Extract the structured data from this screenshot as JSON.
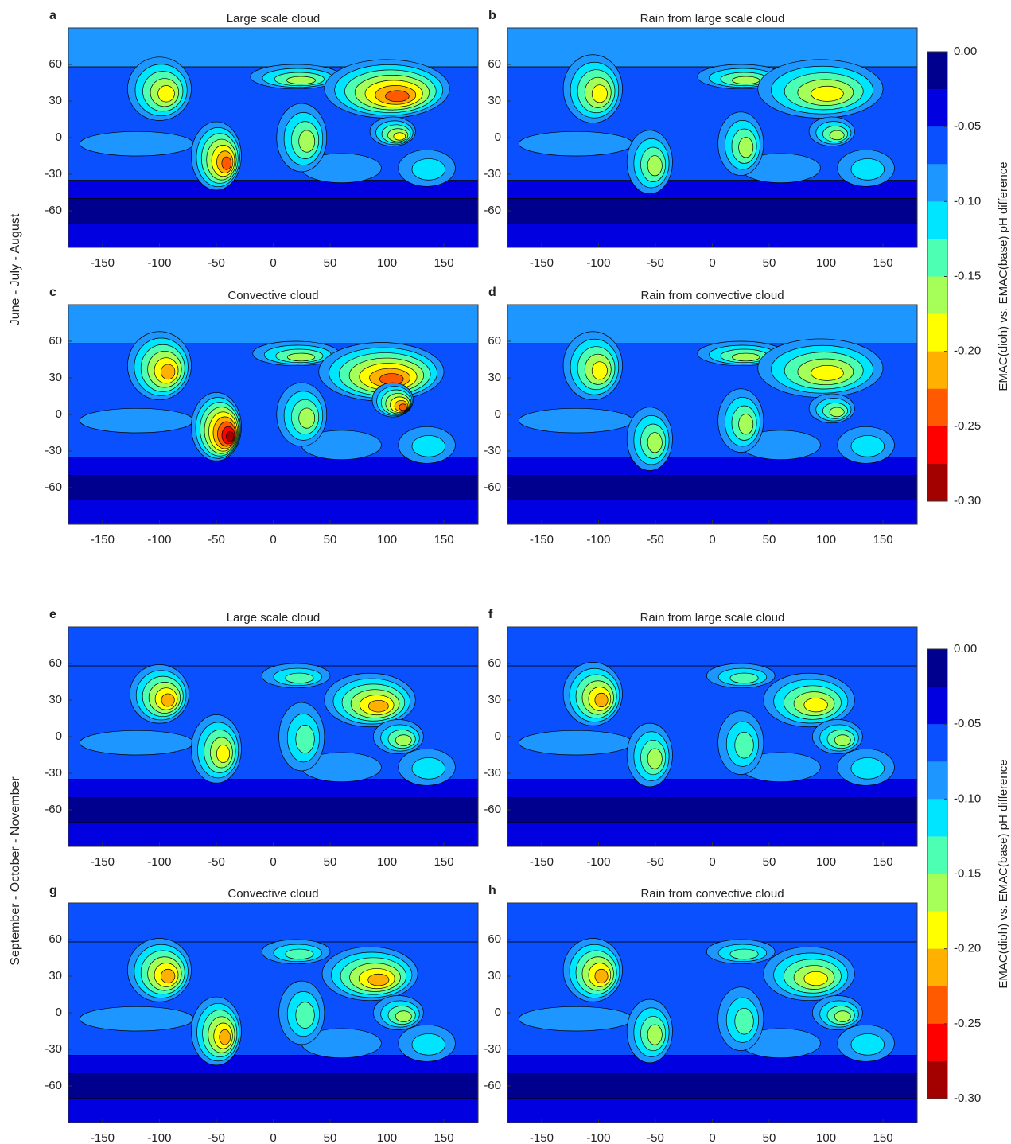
{
  "chart_data": [
    {
      "type": "contour",
      "panel": "a",
      "title": "Large scale cloud",
      "xlim": [
        -180,
        180
      ],
      "ylim": [
        -90,
        90
      ],
      "xticks": [
        -150,
        -100,
        -50,
        0,
        50,
        100,
        150
      ],
      "yticks": [
        -60,
        -30,
        0,
        30,
        60
      ]
    },
    {
      "type": "contour",
      "panel": "b",
      "title": "Rain from large scale cloud",
      "xlim": [
        -180,
        180
      ],
      "ylim": [
        -90,
        90
      ],
      "xticks": [
        -150,
        -100,
        -50,
        0,
        50,
        100,
        150
      ],
      "yticks": [
        -60,
        -30,
        0,
        30,
        60
      ]
    },
    {
      "type": "contour",
      "panel": "c",
      "title": "Convective cloud",
      "xlim": [
        -180,
        180
      ],
      "ylim": [
        -90,
        90
      ],
      "xticks": [
        -150,
        -100,
        -50,
        0,
        50,
        100,
        150
      ],
      "yticks": [
        -60,
        -30,
        0,
        30,
        60
      ]
    },
    {
      "type": "contour",
      "panel": "d",
      "title": "Rain from convective cloud",
      "xlim": [
        -180,
        180
      ],
      "ylim": [
        -90,
        90
      ],
      "xticks": [
        -150,
        -100,
        -50,
        0,
        50,
        100,
        150
      ],
      "yticks": [
        -60,
        -30,
        0,
        30,
        60
      ]
    },
    {
      "type": "contour",
      "panel": "e",
      "title": "Large scale cloud",
      "xlim": [
        -180,
        180
      ],
      "ylim": [
        -90,
        90
      ],
      "xticks": [
        -150,
        -100,
        -50,
        0,
        50,
        100,
        150
      ],
      "yticks": [
        -60,
        -30,
        0,
        30,
        60
      ]
    },
    {
      "type": "contour",
      "panel": "f",
      "title": "Rain from large scale cloud",
      "xlim": [
        -180,
        180
      ],
      "ylim": [
        -90,
        90
      ],
      "xticks": [
        -150,
        -100,
        -50,
        0,
        50,
        100,
        150
      ],
      "yticks": [
        -60,
        -30,
        0,
        30,
        60
      ]
    },
    {
      "type": "contour",
      "panel": "g",
      "title": "Convective cloud",
      "xlim": [
        -180,
        180
      ],
      "ylim": [
        -90,
        90
      ],
      "xticks": [
        -150,
        -100,
        -50,
        0,
        50,
        100,
        150
      ],
      "yticks": [
        -60,
        -30,
        0,
        30,
        60
      ]
    },
    {
      "type": "contour",
      "panel": "h",
      "title": "Rain from convective cloud",
      "xlim": [
        -180,
        180
      ],
      "ylim": [
        -90,
        90
      ],
      "xticks": [
        -150,
        -100,
        -50,
        0,
        50,
        100,
        150
      ],
      "yticks": [
        -60,
        -30,
        0,
        30,
        60
      ]
    }
  ],
  "row_labels": [
    "June - July - August",
    "September - October - November"
  ],
  "colorbars": [
    {
      "label": "EMAC(dioh) vs. EMAC(base) pH difference",
      "ylim": [
        -0.3,
        0
      ],
      "yticks": [
        {
          "value": 0,
          "label": "0.00"
        },
        {
          "value": -0.05,
          "label": "-0.05"
        },
        {
          "value": -0.1,
          "label": "-0.10"
        },
        {
          "value": -0.15,
          "label": "-0.15"
        },
        {
          "value": -0.2,
          "label": "-0.20"
        },
        {
          "value": -0.25,
          "label": "-0.25"
        },
        {
          "value": -0.3,
          "label": "-0.30"
        }
      ],
      "colors": [
        "#00008f",
        "#0000e0",
        "#0a50ff",
        "#1e96ff",
        "#00e5ff",
        "#4dffb3",
        "#a6ff59",
        "#ffff00",
        "#ffb000",
        "#ff5a00",
        "#ff0000",
        "#a30000"
      ]
    },
    {
      "label": "EMAC(dioh) vs. EMAC(base) pH difference",
      "ylim": [
        -0.3,
        0
      ],
      "yticks": [
        {
          "value": 0,
          "label": "0.00"
        },
        {
          "value": -0.05,
          "label": "-0.05"
        },
        {
          "value": -0.1,
          "label": "-0.10"
        },
        {
          "value": -0.15,
          "label": "-0.15"
        },
        {
          "value": -0.2,
          "label": "-0.20"
        },
        {
          "value": -0.25,
          "label": "-0.25"
        },
        {
          "value": -0.3,
          "label": "-0.30"
        }
      ],
      "colors": [
        "#00008f",
        "#0000e0",
        "#0a50ff",
        "#1e96ff",
        "#00e5ff",
        "#4dffb3",
        "#a6ff59",
        "#ffff00",
        "#ffb000",
        "#ff5a00",
        "#ff0000",
        "#a30000"
      ]
    }
  ]
}
